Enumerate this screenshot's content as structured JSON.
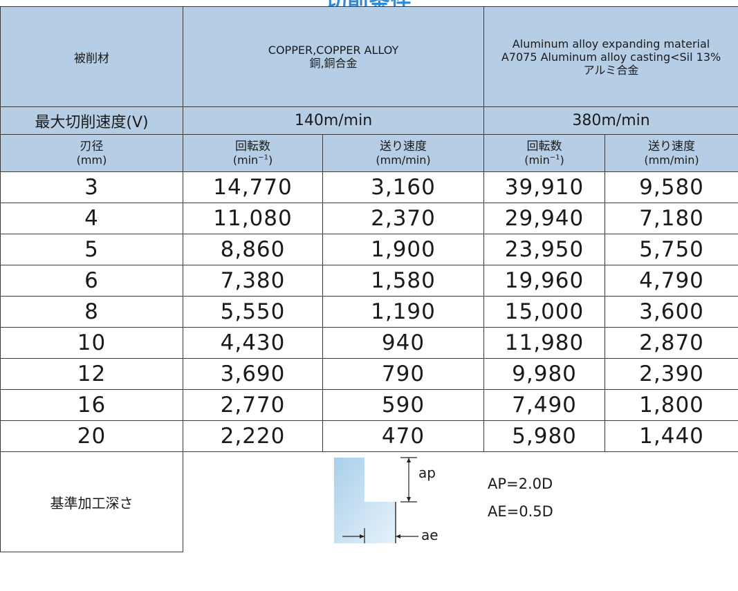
{
  "title": "切削条件",
  "colors": {
    "header_bg": "#b6cde6",
    "border": "#3a3a3a",
    "title": "#2f8ad6",
    "diagram_fill": "#bcd9ee"
  },
  "header": {
    "material_label": "被削材",
    "copper": {
      "line1": "COPPER,COPPER ALLOY",
      "line2": "銅,銅合金"
    },
    "aluminum": {
      "line1": "Aluminum alloy expanding material",
      "line2": "A7075 Aluminum alloy casting<Sil 13%",
      "line3": "アルミ合金"
    }
  },
  "speed": {
    "label": "最大切削速度(V)",
    "copper": "140m/min",
    "aluminum": "380m/min"
  },
  "units": {
    "diameter": {
      "label": "刃径",
      "unit": "(mm)"
    },
    "rpm": {
      "label": "回転数",
      "unit_base": "(min",
      "unit_exp": "−1",
      "unit_close": ")"
    },
    "feed": {
      "label": "送り速度",
      "unit": "(mm/min)"
    }
  },
  "rows": [
    {
      "d": "3",
      "cu_rpm": "14,770",
      "cu_feed": "3,160",
      "al_rpm": "39,910",
      "al_feed": "9,580"
    },
    {
      "d": "4",
      "cu_rpm": "11,080",
      "cu_feed": "2,370",
      "al_rpm": "29,940",
      "al_feed": "7,180"
    },
    {
      "d": "5",
      "cu_rpm": "8,860",
      "cu_feed": "1,900",
      "al_rpm": "23,950",
      "al_feed": "5,750"
    },
    {
      "d": "6",
      "cu_rpm": "7,380",
      "cu_feed": "1,580",
      "al_rpm": "19,960",
      "al_feed": "4,790"
    },
    {
      "d": "8",
      "cu_rpm": "5,550",
      "cu_feed": "1,190",
      "al_rpm": "15,000",
      "al_feed": "3,600"
    },
    {
      "d": "10",
      "cu_rpm": "4,430",
      "cu_feed": "940",
      "al_rpm": "11,980",
      "al_feed": "2,870"
    },
    {
      "d": "12",
      "cu_rpm": "3,690",
      "cu_feed": "790",
      "al_rpm": "9,980",
      "al_feed": "2,390"
    },
    {
      "d": "16",
      "cu_rpm": "2,770",
      "cu_feed": "590",
      "al_rpm": "7,490",
      "al_feed": "1,800"
    },
    {
      "d": "20",
      "cu_rpm": "2,220",
      "cu_feed": "470",
      "al_rpm": "5,980",
      "al_feed": "1,440"
    }
  ],
  "depth": {
    "label": "基準加工深さ",
    "ap_label": "ap",
    "ae_label": "ae",
    "formula_ap": "AP=2.0D",
    "formula_ae": "AE=0.5D"
  }
}
